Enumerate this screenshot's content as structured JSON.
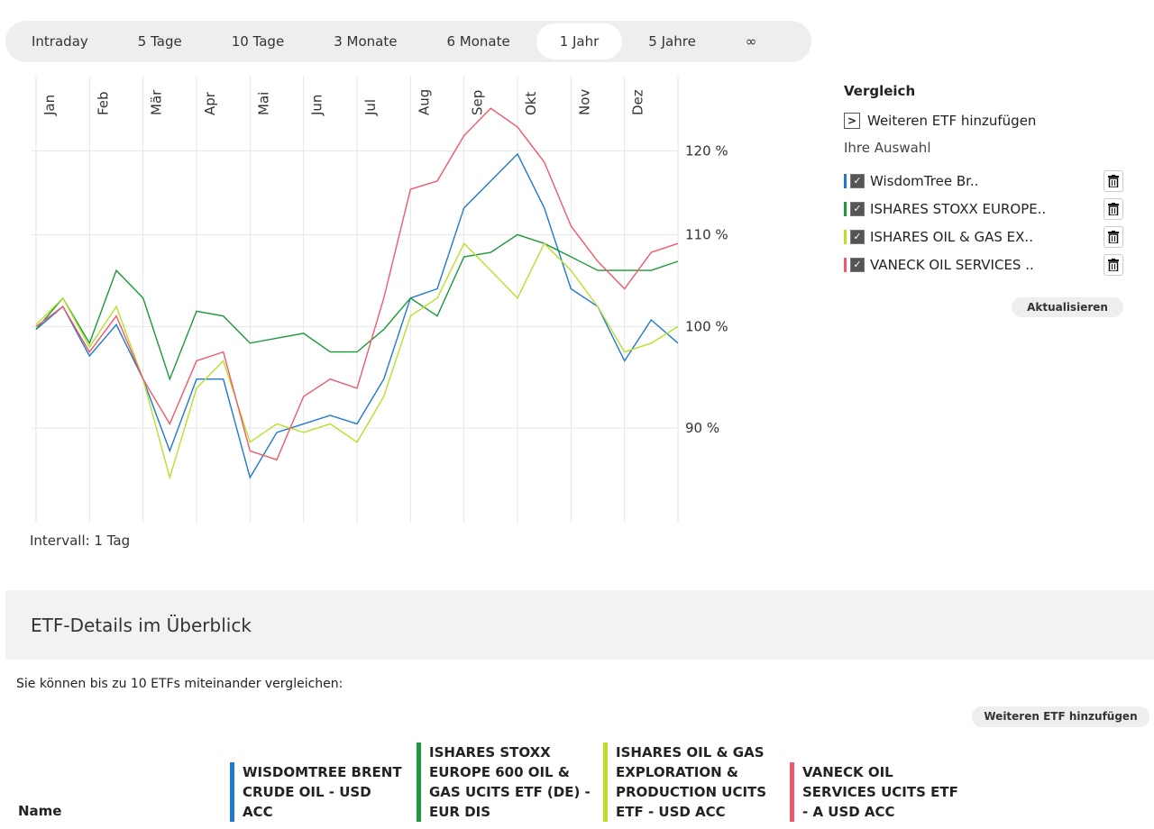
{
  "tabs": {
    "items": [
      "Intraday",
      "5 Tage",
      "10 Tage",
      "3 Monate",
      "6 Monate",
      "1 Jahr",
      "5 Jahre",
      "∞"
    ],
    "active": 5
  },
  "chart_data": {
    "type": "line",
    "x_labels": [
      "Jan",
      "Feb",
      "Mär",
      "Apr",
      "Mai",
      "Jun",
      "Jul",
      "Aug",
      "Sep",
      "Okt",
      "Nov",
      "Dez"
    ],
    "log_scale": true,
    "grid": true,
    "ylim": [
      81.6,
      129.6
    ],
    "yticks": [
      {
        "value": 90,
        "label": "90 %"
      },
      {
        "value": 100,
        "label": "100 %"
      },
      {
        "value": 110,
        "label": "110 %"
      },
      {
        "value": 120,
        "label": "120 %"
      }
    ],
    "note": "Intervall: 1 Tag",
    "series": [
      {
        "name": "WisdomTree Br..",
        "color": "#1f78d1",
        "values": [
          99.7,
          102.1,
          97.0,
          100.2,
          94.7,
          87.9,
          94.7,
          94.7,
          85.5,
          89.6,
          90.4,
          91.2,
          90.4,
          94.7,
          103.0,
          104.0,
          113.1,
          116.3,
          119.6,
          113.1,
          104.0,
          102.1,
          96.5,
          100.7,
          98.3
        ]
      },
      {
        "name": "ISHARES STOXX EUROPE..",
        "color": "#1a9a3a",
        "values": [
          99.7,
          103.0,
          98.3,
          106.0,
          103.0,
          94.7,
          101.6,
          101.1,
          98.3,
          98.8,
          99.3,
          97.4,
          97.4,
          99.7,
          103.0,
          101.1,
          107.5,
          108.0,
          110.0,
          109.0,
          107.5,
          106.0,
          106.0,
          106.0,
          107.0
        ]
      },
      {
        "name": "ISHARES OIL & GAS EX..",
        "color": "#b8e02a",
        "values": [
          100.2,
          103.0,
          97.9,
          102.1,
          94.7,
          85.5,
          93.8,
          96.5,
          88.7,
          90.4,
          89.6,
          90.4,
          88.7,
          93.0,
          101.1,
          103.0,
          109.0,
          106.0,
          103.0,
          109.0,
          106.0,
          102.1,
          97.4,
          98.3,
          100.0
        ]
      },
      {
        "name": "VANECK OIL SERVICES ..",
        "color": "#ef5a6a",
        "values": [
          100.0,
          102.1,
          97.4,
          101.1,
          94.7,
          90.4,
          96.5,
          97.4,
          87.9,
          87.1,
          93.0,
          94.7,
          93.8,
          103.0,
          115.3,
          116.3,
          121.9,
          125.4,
          123.0,
          118.6,
          111.0,
          107.0,
          104.0,
          108.0,
          109.0
        ]
      }
    ]
  },
  "panel": {
    "title": "Vergleich",
    "add": "Weiteren ETF hinzufügen",
    "selection": "Ihre Auswahl",
    "update": "Aktualisieren"
  },
  "details": {
    "title": "ETF-Details im Überblick",
    "info": "Sie können bis zu 10 ETFs miteinander vergleichen:",
    "add": "Weiteren ETF hinzufügen",
    "name_header": "Name",
    "columns": [
      "WISDOMTREE BRENT CRUDE OIL - USD ACC",
      "ISHARES STOXX EUROPE 600 OIL & GAS UCITS ETF (DE) - EUR DIS",
      "ISHARES OIL & GAS EXPLORATION & PRODUCTION UCITS ETF - USD ACC",
      "VANECK OIL SERVICES UCITS ETF - A USD ACC"
    ]
  }
}
